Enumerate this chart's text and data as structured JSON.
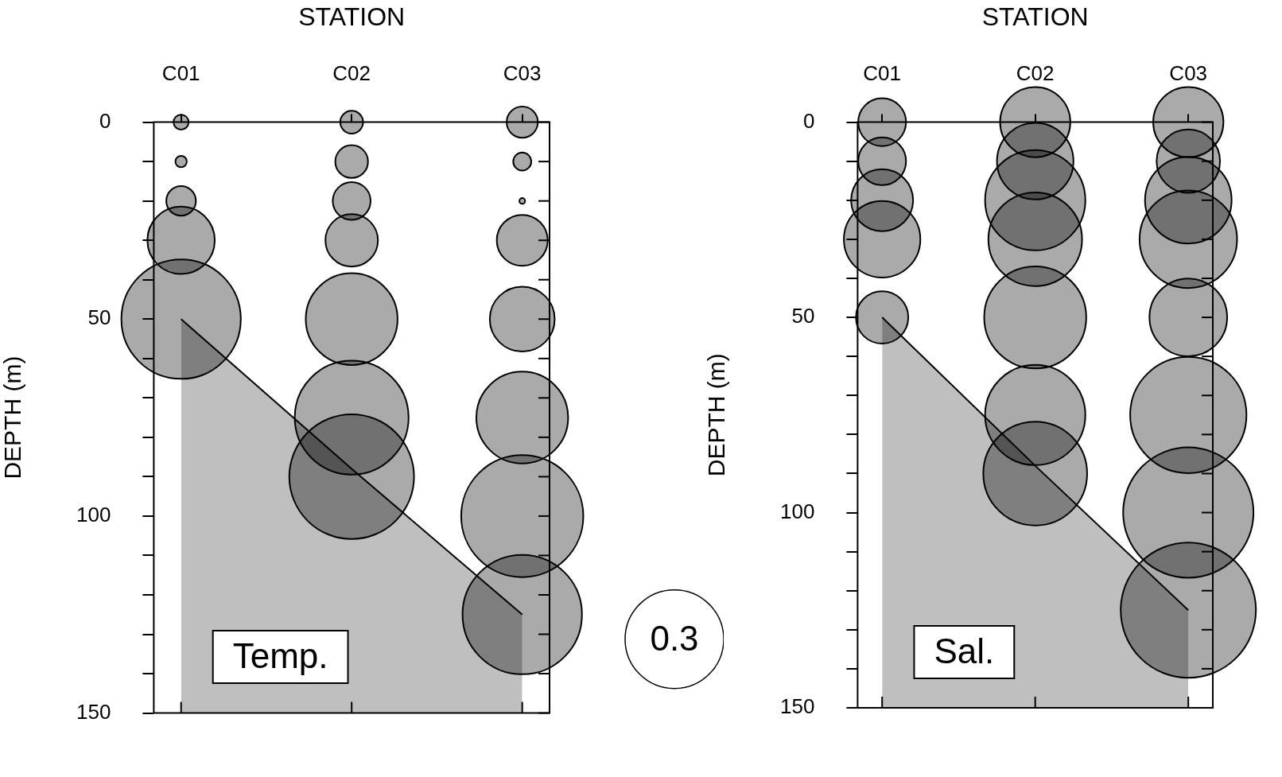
{
  "chart_data": [
    {
      "type": "bubble",
      "xlabel": "STATION",
      "ylabel": "DEPTH (m)",
      "categories": [
        "C01",
        "C02",
        "C03"
      ],
      "ylim": [
        150,
        0
      ],
      "yticks": [
        0,
        {
          "value": 10,
          "label": null
        },
        {
          "value": 20,
          "label": null
        },
        {
          "value": 30,
          "label": null
        },
        {
          "value": 40,
          "label": null
        },
        50,
        {
          "value": 60,
          "label": null
        },
        {
          "value": 70,
          "label": null
        },
        {
          "value": 80,
          "label": null
        },
        {
          "value": 90,
          "label": null
        },
        100,
        {
          "value": 110,
          "label": null
        },
        {
          "value": 120,
          "label": null
        },
        {
          "value": 130,
          "label": null
        },
        {
          "value": 140,
          "label": null
        },
        150
      ],
      "grid": false,
      "legend": false,
      "size_legend": [
        0.3
      ],
      "annotations": [
        "Temp."
      ],
      "series": [
        {
          "type": "line",
          "color": "#000000",
          "values": [
            50,
            88,
            125
          ],
          "lower": [
            50,
            88,
            125
          ],
          "upper": [
            150,
            150,
            150
          ]
        },
        {
          "type": "bubble",
          "color": "#000000",
          "x": [
            "C01",
            "C01",
            "C01",
            "C01",
            "C01",
            "C02",
            "C02",
            "C02",
            "C02",
            "C02",
            "C02",
            "C02",
            "C03",
            "C03",
            "C03",
            "C03",
            "C03",
            "C03",
            "C03",
            "C03"
          ],
          "values": [
            0,
            10,
            20,
            30,
            50,
            0,
            10,
            20,
            30,
            50,
            75,
            90,
            0,
            10,
            20,
            30,
            50,
            75,
            100,
            125
          ],
          "sizes": [
            0.007,
            0.004,
            0.027,
            0.14,
            0.44,
            0.016,
            0.033,
            0.044,
            0.085,
            0.26,
            0.4,
            0.48,
            0.03,
            0.01,
            0.001,
            0.08,
            0.13,
            0.26,
            0.46,
            0.44
          ]
        }
      ]
    },
    {
      "type": "bubble",
      "xlabel": "STATION",
      "ylabel": "DEPTH (m)",
      "categories": [
        "C01",
        "C02",
        "C03"
      ],
      "ylim": [
        150,
        0
      ],
      "yticks": [
        0,
        {
          "value": 10,
          "label": null
        },
        {
          "value": 20,
          "label": null
        },
        {
          "value": 30,
          "label": null
        },
        {
          "value": 40,
          "label": null
        },
        50,
        {
          "value": 60,
          "label": null
        },
        {
          "value": 70,
          "label": null
        },
        {
          "value": 80,
          "label": null
        },
        {
          "value": 90,
          "label": null
        },
        100,
        {
          "value": 110,
          "label": null
        },
        {
          "value": 120,
          "label": null
        },
        {
          "value": 130,
          "label": null
        },
        {
          "value": 140,
          "label": null
        },
        150
      ],
      "grid": false,
      "legend": false,
      "annotations": [
        "Sal."
      ],
      "series": [
        {
          "type": "line",
          "color": "#000000",
          "values": [
            50,
            88,
            125
          ],
          "lower": [
            50,
            88,
            125
          ],
          "upper": [
            150,
            150,
            150
          ]
        },
        {
          "type": "bubble",
          "color": "#000000",
          "x": [
            "C01",
            "C01",
            "C01",
            "C01",
            "C01",
            "C02",
            "C02",
            "C02",
            "C02",
            "C02",
            "C02",
            "C02",
            "C03",
            "C03",
            "C03",
            "C03",
            "C03",
            "C03",
            "C03",
            "C03"
          ],
          "values": [
            0,
            10,
            20,
            30,
            50,
            0,
            10,
            20,
            30,
            50,
            75,
            90,
            0,
            10,
            20,
            30,
            50,
            75,
            100,
            125
          ],
          "sizes": [
            0.125,
            0.125,
            0.21,
            0.32,
            0.15,
            0.27,
            0.32,
            0.55,
            0.48,
            0.57,
            0.55,
            0.59,
            0.27,
            0.22,
            0.41,
            0.52,
            0.33,
            0.74,
            0.93,
            1
          ]
        }
      ]
    }
  ]
}
